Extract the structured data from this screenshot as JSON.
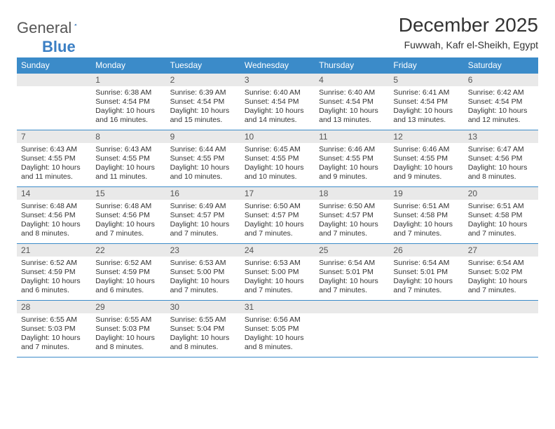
{
  "brand": {
    "general": "General",
    "blue": "Blue"
  },
  "title": "December 2025",
  "location": "Fuwwah, Kafr el-Sheikh, Egypt",
  "colors": {
    "header_bg": "#3b8bc9",
    "header_fg": "#ffffff",
    "daynum_bg": "#e9e9e9",
    "rule": "#3b8bc9",
    "brand_blue": "#3b7fc4",
    "text": "#333333"
  },
  "typography": {
    "title_fontsize": 28,
    "location_fontsize": 14,
    "dow_fontsize": 12,
    "daynum_fontsize": 12,
    "body_fontsize": 10.5
  },
  "dow": [
    "Sunday",
    "Monday",
    "Tuesday",
    "Wednesday",
    "Thursday",
    "Friday",
    "Saturday"
  ],
  "weeks": [
    [
      {
        "n": "",
        "sr": "",
        "ss": "",
        "dl": ""
      },
      {
        "n": "1",
        "sr": "Sunrise: 6:38 AM",
        "ss": "Sunset: 4:54 PM",
        "dl": "Daylight: 10 hours and 16 minutes."
      },
      {
        "n": "2",
        "sr": "Sunrise: 6:39 AM",
        "ss": "Sunset: 4:54 PM",
        "dl": "Daylight: 10 hours and 15 minutes."
      },
      {
        "n": "3",
        "sr": "Sunrise: 6:40 AM",
        "ss": "Sunset: 4:54 PM",
        "dl": "Daylight: 10 hours and 14 minutes."
      },
      {
        "n": "4",
        "sr": "Sunrise: 6:40 AM",
        "ss": "Sunset: 4:54 PM",
        "dl": "Daylight: 10 hours and 13 minutes."
      },
      {
        "n": "5",
        "sr": "Sunrise: 6:41 AM",
        "ss": "Sunset: 4:54 PM",
        "dl": "Daylight: 10 hours and 13 minutes."
      },
      {
        "n": "6",
        "sr": "Sunrise: 6:42 AM",
        "ss": "Sunset: 4:54 PM",
        "dl": "Daylight: 10 hours and 12 minutes."
      }
    ],
    [
      {
        "n": "7",
        "sr": "Sunrise: 6:43 AM",
        "ss": "Sunset: 4:55 PM",
        "dl": "Daylight: 10 hours and 11 minutes."
      },
      {
        "n": "8",
        "sr": "Sunrise: 6:43 AM",
        "ss": "Sunset: 4:55 PM",
        "dl": "Daylight: 10 hours and 11 minutes."
      },
      {
        "n": "9",
        "sr": "Sunrise: 6:44 AM",
        "ss": "Sunset: 4:55 PM",
        "dl": "Daylight: 10 hours and 10 minutes."
      },
      {
        "n": "10",
        "sr": "Sunrise: 6:45 AM",
        "ss": "Sunset: 4:55 PM",
        "dl": "Daylight: 10 hours and 10 minutes."
      },
      {
        "n": "11",
        "sr": "Sunrise: 6:46 AM",
        "ss": "Sunset: 4:55 PM",
        "dl": "Daylight: 10 hours and 9 minutes."
      },
      {
        "n": "12",
        "sr": "Sunrise: 6:46 AM",
        "ss": "Sunset: 4:55 PM",
        "dl": "Daylight: 10 hours and 9 minutes."
      },
      {
        "n": "13",
        "sr": "Sunrise: 6:47 AM",
        "ss": "Sunset: 4:56 PM",
        "dl": "Daylight: 10 hours and 8 minutes."
      }
    ],
    [
      {
        "n": "14",
        "sr": "Sunrise: 6:48 AM",
        "ss": "Sunset: 4:56 PM",
        "dl": "Daylight: 10 hours and 8 minutes."
      },
      {
        "n": "15",
        "sr": "Sunrise: 6:48 AM",
        "ss": "Sunset: 4:56 PM",
        "dl": "Daylight: 10 hours and 7 minutes."
      },
      {
        "n": "16",
        "sr": "Sunrise: 6:49 AM",
        "ss": "Sunset: 4:57 PM",
        "dl": "Daylight: 10 hours and 7 minutes."
      },
      {
        "n": "17",
        "sr": "Sunrise: 6:50 AM",
        "ss": "Sunset: 4:57 PM",
        "dl": "Daylight: 10 hours and 7 minutes."
      },
      {
        "n": "18",
        "sr": "Sunrise: 6:50 AM",
        "ss": "Sunset: 4:57 PM",
        "dl": "Daylight: 10 hours and 7 minutes."
      },
      {
        "n": "19",
        "sr": "Sunrise: 6:51 AM",
        "ss": "Sunset: 4:58 PM",
        "dl": "Daylight: 10 hours and 7 minutes."
      },
      {
        "n": "20",
        "sr": "Sunrise: 6:51 AM",
        "ss": "Sunset: 4:58 PM",
        "dl": "Daylight: 10 hours and 7 minutes."
      }
    ],
    [
      {
        "n": "21",
        "sr": "Sunrise: 6:52 AM",
        "ss": "Sunset: 4:59 PM",
        "dl": "Daylight: 10 hours and 6 minutes."
      },
      {
        "n": "22",
        "sr": "Sunrise: 6:52 AM",
        "ss": "Sunset: 4:59 PM",
        "dl": "Daylight: 10 hours and 6 minutes."
      },
      {
        "n": "23",
        "sr": "Sunrise: 6:53 AM",
        "ss": "Sunset: 5:00 PM",
        "dl": "Daylight: 10 hours and 7 minutes."
      },
      {
        "n": "24",
        "sr": "Sunrise: 6:53 AM",
        "ss": "Sunset: 5:00 PM",
        "dl": "Daylight: 10 hours and 7 minutes."
      },
      {
        "n": "25",
        "sr": "Sunrise: 6:54 AM",
        "ss": "Sunset: 5:01 PM",
        "dl": "Daylight: 10 hours and 7 minutes."
      },
      {
        "n": "26",
        "sr": "Sunrise: 6:54 AM",
        "ss": "Sunset: 5:01 PM",
        "dl": "Daylight: 10 hours and 7 minutes."
      },
      {
        "n": "27",
        "sr": "Sunrise: 6:54 AM",
        "ss": "Sunset: 5:02 PM",
        "dl": "Daylight: 10 hours and 7 minutes."
      }
    ],
    [
      {
        "n": "28",
        "sr": "Sunrise: 6:55 AM",
        "ss": "Sunset: 5:03 PM",
        "dl": "Daylight: 10 hours and 7 minutes."
      },
      {
        "n": "29",
        "sr": "Sunrise: 6:55 AM",
        "ss": "Sunset: 5:03 PM",
        "dl": "Daylight: 10 hours and 8 minutes."
      },
      {
        "n": "30",
        "sr": "Sunrise: 6:55 AM",
        "ss": "Sunset: 5:04 PM",
        "dl": "Daylight: 10 hours and 8 minutes."
      },
      {
        "n": "31",
        "sr": "Sunrise: 6:56 AM",
        "ss": "Sunset: 5:05 PM",
        "dl": "Daylight: 10 hours and 8 minutes."
      },
      {
        "n": "",
        "sr": "",
        "ss": "",
        "dl": ""
      },
      {
        "n": "",
        "sr": "",
        "ss": "",
        "dl": ""
      },
      {
        "n": "",
        "sr": "",
        "ss": "",
        "dl": ""
      }
    ]
  ]
}
